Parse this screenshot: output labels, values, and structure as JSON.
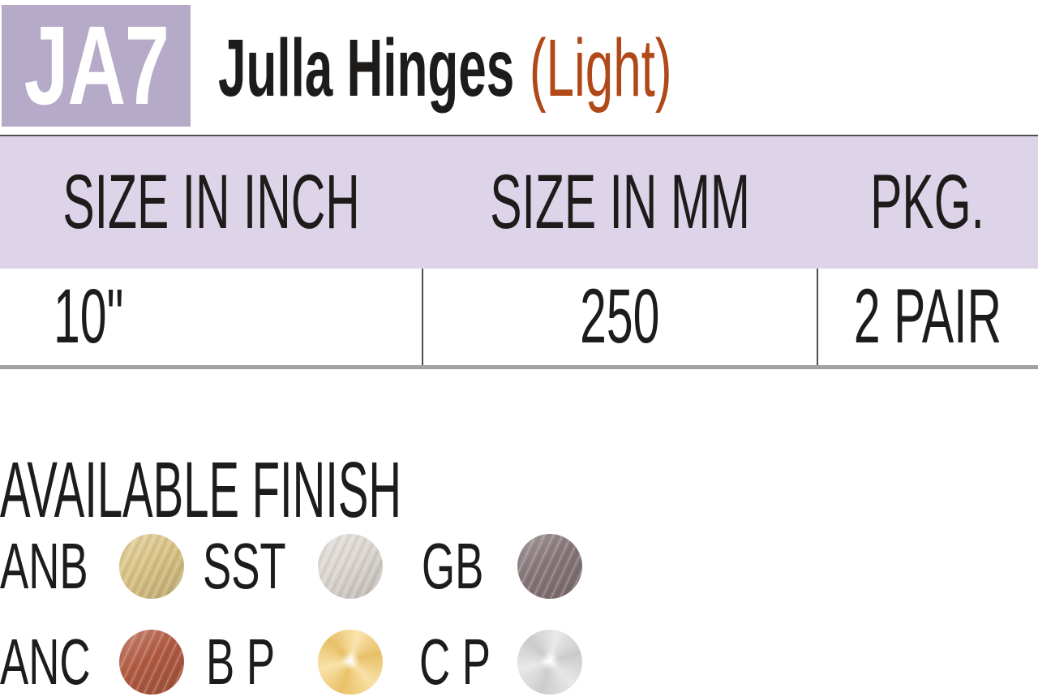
{
  "header": {
    "code": "JA7",
    "title": "Julla Hinges",
    "variant": "(Light)"
  },
  "table": {
    "columns": [
      "SIZE IN INCH",
      "SIZE IN MM",
      "PKG."
    ],
    "rows": [
      {
        "size_inch": "10\"",
        "size_mm": "250",
        "pkg": "2 PAIR"
      }
    ]
  },
  "finishes": {
    "heading": "AVAILABLE FINISH",
    "items": [
      {
        "code": "ANB",
        "swatch": "antique-brass-brushed",
        "color": "#d9c284",
        "style": "brushed"
      },
      {
        "code": "SST",
        "swatch": "stainless-steel-brushed",
        "color": "#dcd6d0",
        "style": "brushed"
      },
      {
        "code": "GB",
        "swatch": "graphite-bronze",
        "color": "#877779",
        "style": "brushed"
      },
      {
        "code": "ANC",
        "swatch": "antique-copper-brushed",
        "color": "#b25b42",
        "style": "brushed"
      },
      {
        "code": "B P",
        "swatch": "brass-polished",
        "color": "#f6cd6e",
        "style": "polished"
      },
      {
        "code": "C P",
        "swatch": "chrome-polished",
        "color": "#d8d8d8",
        "style": "polished"
      }
    ]
  },
  "colors": {
    "badge-purple": "#b6aac9",
    "band-purple": "#ded4ea",
    "accent-orange": "#b04818",
    "ink": "#1d1c1a",
    "divider-dark": "#4f4f4f",
    "rule-gray": "#a3a3a3"
  }
}
